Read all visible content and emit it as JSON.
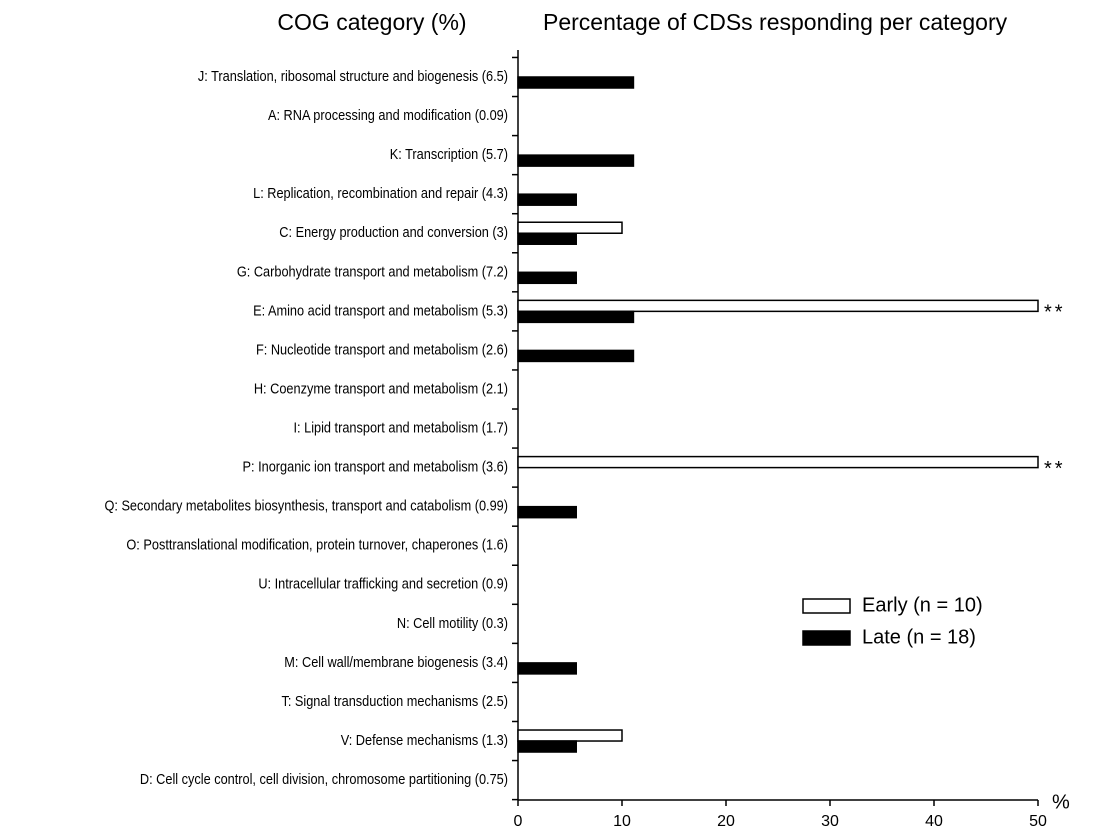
{
  "chart_data": {
    "type": "hbar",
    "title": "Percentage of CDSs responding per category",
    "category_title": "COG category (%)",
    "x_label": "%",
    "categories": [
      "J: Translation, ribosomal structure and biogenesis (6.5)",
      "A: RNA processing and modification (0.09)",
      "K: Transcription (5.7)",
      "L: Replication, recombination and repair (4.3)",
      "C: Energy production and conversion (3)",
      "G: Carbohydrate transport and metabolism (7.2)",
      "E: Amino acid transport and metabolism (5.3)",
      "F: Nucleotide transport and metabolism (2.6)",
      "H: Coenzyme transport and metabolism (2.1)",
      "I: Lipid transport and metabolism (1.7)",
      "P: Inorganic ion transport and metabolism (3.6)",
      "Q: Secondary metabolites biosynthesis, transport and catabolism (0.99)",
      "O: Posttranslational modification, protein turnover, chaperones (1.6)",
      "U: Intracellular trafficking and secretion (0.9)",
      "N: Cell motility (0.3)",
      "M: Cell wall/membrane biogenesis (3.4)",
      "T: Signal transduction mechanisms (2.5)",
      "V: Defense mechanisms (1.3)",
      "D: Cell cycle control, cell division, chromosome partitioning (0.75)"
    ],
    "series": [
      {
        "name": "Early (n = 10)",
        "color": "#ffffff",
        "stroke": "#000000",
        "values": [
          0,
          0,
          0,
          0,
          10,
          0,
          50,
          0,
          0,
          0,
          50,
          0,
          0,
          0,
          0,
          0,
          0,
          10,
          0
        ]
      },
      {
        "name": "Late (n = 18)",
        "color": "#000000",
        "stroke": "#000000",
        "values": [
          11.1,
          0,
          11.1,
          5.6,
          5.6,
          5.6,
          11.1,
          11.1,
          0,
          0,
          0,
          5.6,
          0,
          0,
          0,
          5.6,
          0,
          5.6,
          0
        ]
      }
    ],
    "annotations": [
      {
        "text": "**",
        "category": "E: Amino acid transport and metabolism (5.3)"
      },
      {
        "text": "**",
        "category": "P: Inorganic ion transport and metabolism (3.6)"
      }
    ],
    "xlim": [
      0,
      50
    ],
    "xticks": [
      0,
      10,
      20,
      30,
      40,
      50
    ],
    "grid": false,
    "legend": "lower right"
  }
}
